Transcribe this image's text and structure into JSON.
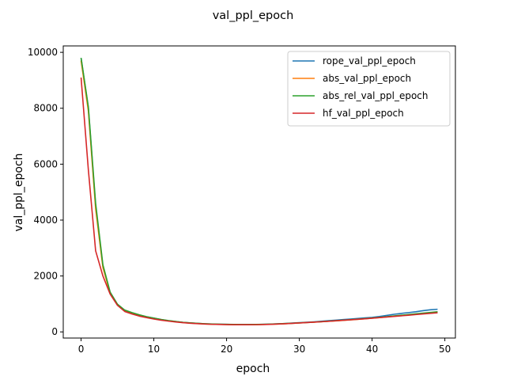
{
  "chart_data": {
    "type": "line",
    "title": "val_ppl_epoch",
    "xlabel": "epoch",
    "ylabel": "val_ppl_epoch",
    "xlim": [
      -2.45,
      51.45
    ],
    "ylim": [
      -220,
      10230
    ],
    "xticks": [
      0,
      10,
      20,
      30,
      40,
      50
    ],
    "yticks": [
      0,
      2000,
      4000,
      6000,
      8000,
      10000
    ],
    "grid": false,
    "legend_position": "top-right",
    "x": [
      0,
      1,
      2,
      3,
      4,
      5,
      6,
      7,
      8,
      9,
      10,
      11,
      12,
      13,
      14,
      15,
      16,
      17,
      18,
      19,
      20,
      21,
      22,
      23,
      24,
      25,
      26,
      27,
      28,
      29,
      30,
      31,
      32,
      33,
      34,
      35,
      36,
      37,
      38,
      39,
      40,
      41,
      42,
      43,
      44,
      45,
      46,
      47,
      48,
      49
    ],
    "series": [
      {
        "name": "rope_val_ppl_epoch",
        "color": "#1f77b4",
        "values": [
          9800,
          8000,
          4500,
          2350,
          1400,
          980,
          770,
          680,
          600,
          540,
          490,
          440,
          400,
          370,
          340,
          320,
          305,
          290,
          280,
          275,
          270,
          265,
          262,
          262,
          265,
          270,
          278,
          288,
          300,
          315,
          330,
          345,
          360,
          380,
          400,
          420,
          440,
          460,
          480,
          500,
          520,
          550,
          590,
          630,
          660,
          690,
          720,
          760,
          790,
          810
        ]
      },
      {
        "name": "abs_val_ppl_epoch",
        "color": "#ff7f0e",
        "values": [
          9700,
          7900,
          4400,
          2300,
          1380,
          970,
          760,
          670,
          590,
          530,
          480,
          435,
          395,
          365,
          335,
          315,
          300,
          285,
          275,
          270,
          265,
          260,
          258,
          258,
          260,
          265,
          272,
          282,
          293,
          307,
          320,
          333,
          347,
          362,
          378,
          395,
          412,
          430,
          448,
          468,
          490,
          512,
          535,
          560,
          585,
          610,
          635,
          660,
          685,
          710
        ]
      },
      {
        "name": "abs_rel_val_ppl_epoch",
        "color": "#2ca02c",
        "values": [
          9800,
          8050,
          4600,
          2400,
          1420,
          990,
          780,
          690,
          610,
          545,
          495,
          445,
          405,
          372,
          342,
          322,
          306,
          291,
          281,
          276,
          271,
          266,
          263,
          263,
          266,
          271,
          279,
          288,
          298,
          310,
          322,
          336,
          350,
          366,
          383,
          400,
          418,
          437,
          456,
          476,
          498,
          520,
          545,
          570,
          595,
          620,
          645,
          670,
          695,
          720
        ]
      },
      {
        "name": "hf_val_ppl_epoch",
        "color": "#d62728",
        "values": [
          9100,
          5800,
          2900,
          2000,
          1350,
          950,
          730,
          640,
          565,
          510,
          460,
          420,
          385,
          355,
          330,
          310,
          295,
          282,
          272,
          266,
          261,
          257,
          255,
          255,
          258,
          263,
          270,
          280,
          292,
          305,
          319,
          333,
          348,
          364,
          381,
          398,
          416,
          434,
          452,
          470,
          489,
          510,
          531,
          553,
          575,
          597,
          619,
          641,
          663,
          685
        ]
      }
    ]
  }
}
